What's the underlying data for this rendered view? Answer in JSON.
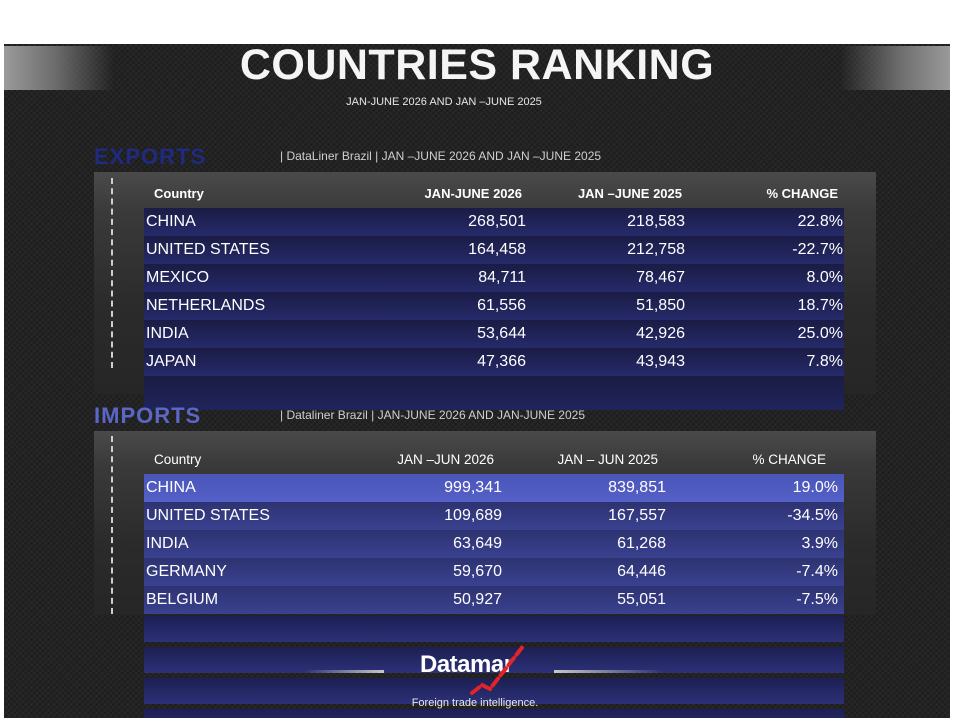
{
  "header": {
    "title": "COUNTRIES RANKING",
    "subtitle": "JAN-JUNE 2026 AND JAN –JUNE 2025"
  },
  "exports": {
    "title": "EXPORTS",
    "source": "|  DataLiner Brazil  | JAN –JUNE  2026  AND  JAN –JUNE 2025",
    "columns": [
      "Country",
      "JAN-JUNE 2026",
      "JAN –JUNE 2025",
      "% CHANGE"
    ],
    "rows": [
      {
        "country": "CHINA",
        "v2026": "268,501",
        "v2025": "218,583",
        "change": "22.8%"
      },
      {
        "country": "UNITED STATES",
        "v2026": "164,458",
        "v2025": "212,758",
        "change": "-22.7%"
      },
      {
        "country": "MEXICO",
        "v2026": "84,711",
        "v2025": "78,467",
        "change": "8.0%"
      },
      {
        "country": "NETHERLANDS",
        "v2026": "61,556",
        "v2025": "51,850",
        "change": "18.7%"
      },
      {
        "country": "INDIA",
        "v2026": "53,644",
        "v2025": "42,926",
        "change": "25.0%"
      },
      {
        "country": "JAPAN",
        "v2026": "47,366",
        "v2025": "43,943",
        "change": "7.8%"
      }
    ]
  },
  "imports": {
    "title": "IMPORTS",
    "source": "|  Dataliner Brazil | JAN-JUNE  2026 AND JAN-JUNE 2025",
    "columns": [
      "Country",
      "JAN –JUN 2026",
      "JAN – JUN  2025",
      "% CHANGE"
    ],
    "rows": [
      {
        "country": "CHINA",
        "v2026": "999,341",
        "v2025": "839,851",
        "change": "19.0%"
      },
      {
        "country": "UNITED STATES",
        "v2026": "109,689",
        "v2025": "167,557",
        "change": "-34.5%"
      },
      {
        "country": "INDIA",
        "v2026": "63,649",
        "v2025": "61,268",
        "change": "3.9%"
      },
      {
        "country": "GERMANY",
        "v2026": "59,670",
        "v2025": "64,446",
        "change": "-7.4%"
      },
      {
        "country": "BELGIUM",
        "v2026": "50,927",
        "v2025": "55,051",
        "change": "-7.5%"
      }
    ]
  },
  "footer": {
    "logo": "Datamar",
    "tagline": "Foreign trade intelligence."
  },
  "colors": {
    "background": "#232323",
    "exports_title": "#1f2a80",
    "imports_title": "#5a66c8",
    "row_blue": "#262a6a",
    "logo_accent": "#e0242a"
  }
}
